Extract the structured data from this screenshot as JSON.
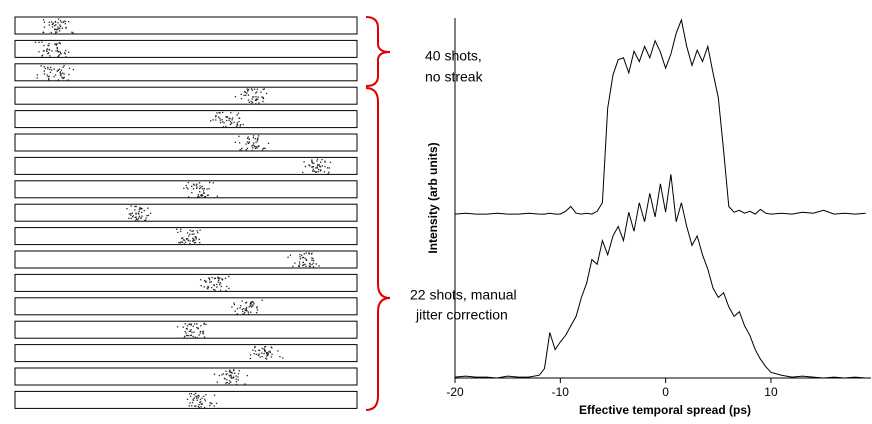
{
  "chart_data": {
    "type": "line",
    "y_label": "Intensity (arb units)",
    "x_label": "Effective temporal spread (ps)",
    "annotations": [
      "40 shots,",
      "no streak",
      "22 shots, manual",
      "jitter correction"
    ],
    "x": [
      -20,
      -19,
      -18,
      -17,
      -16,
      -15,
      -14,
      -13,
      -12,
      -11.5,
      -11,
      -10.5,
      -10,
      -9.5,
      -9,
      -8.5,
      -8,
      -7.5,
      -7,
      -6.5,
      -6,
      -5.5,
      -5,
      -4.5,
      -4,
      -3.5,
      -3,
      -2.5,
      -2,
      -1.5,
      -1,
      -0.5,
      0,
      0.5,
      1,
      1.5,
      2,
      2.5,
      3,
      3.5,
      4,
      4.5,
      5,
      5.5,
      6,
      6.5,
      7,
      7.5,
      8,
      8.5,
      9,
      9.5,
      10,
      11,
      12,
      13,
      14,
      15,
      16,
      17,
      18,
      19
    ],
    "series": [
      {
        "color": "#000000",
        "values": [
          173,
          174,
          173,
          173,
          174,
          173,
          173,
          174,
          173,
          173,
          174,
          173,
          173,
          176,
          181,
          174,
          173,
          174,
          173,
          176,
          185,
          285,
          320,
          336,
          338,
          322,
          345,
          334,
          350,
          338,
          356,
          344,
          327,
          342,
          364,
          378,
          350,
          330,
          346,
          334,
          350,
          322,
          296,
          240,
          181,
          175,
          177,
          174,
          176,
          173,
          178,
          174,
          173,
          174,
          173,
          175,
          174,
          177,
          173,
          174,
          173,
          174
        ]
      },
      {
        "color": "#000000",
        "values": [
          1,
          2,
          1,
          1,
          0,
          2,
          1,
          1,
          3,
          10,
          48,
          30,
          38,
          45,
          55,
          65,
          85,
          100,
          125,
          120,
          145,
          130,
          150,
          160,
          145,
          175,
          155,
          185,
          165,
          195,
          170,
          205,
          175,
          215,
          165,
          185,
          160,
          140,
          150,
          130,
          115,
          95,
          85,
          90,
          75,
          65,
          70,
          55,
          45,
          30,
          20,
          12,
          6,
          3,
          1,
          2,
          1,
          0,
          1,
          0,
          1,
          0
        ]
      }
    ],
    "xlim": [
      -20,
      19.5
    ],
    "ylim": [
      0,
      380
    ],
    "xticks": [
      -20,
      -10,
      0,
      10
    ]
  }
}
